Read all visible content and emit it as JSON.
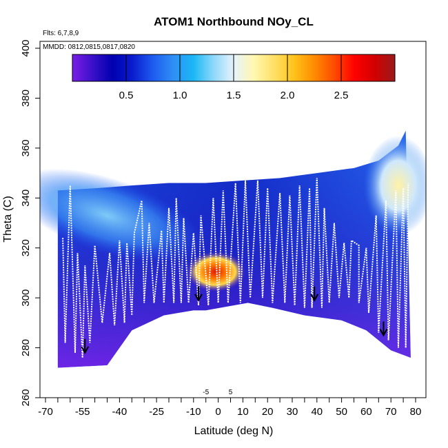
{
  "chart_data": {
    "type": "heatmap",
    "title": "ATOM1 Northbound NOy_CL",
    "flights_note": "Flts: 6,7,8,9",
    "dates_note": "MMDD: 0812,0815,0817,0820",
    "xlabel": "Latitude (deg N)",
    "ylabel": "Theta (C)",
    "xlim": [
      -70,
      80
    ],
    "ylim": [
      260,
      400
    ],
    "x_ticks": [
      "-70",
      "-55",
      "-40",
      "-25",
      "-10",
      "0",
      "10",
      "20",
      "30",
      "40",
      "50",
      "60",
      "70",
      "80"
    ],
    "x_tick_values": [
      -70,
      -55,
      -40,
      -25,
      -10,
      0,
      10,
      20,
      30,
      40,
      50,
      60,
      70,
      80
    ],
    "x_ticks_inner": [
      "-5",
      "5"
    ],
    "x_ticks_inner_values": [
      -5,
      5
    ],
    "y_ticks": [
      "260",
      "280",
      "300",
      "320",
      "340",
      "360",
      "380",
      "400"
    ],
    "y_tick_values": [
      260,
      280,
      300,
      320,
      340,
      360,
      380,
      400
    ],
    "colorbar": {
      "range": [
        0,
        3.0
      ],
      "ticks": [
        "0.5",
        "1.0",
        "1.5",
        "2.0",
        "2.5"
      ],
      "tick_values": [
        0.5,
        1.0,
        1.5,
        2.0,
        2.5
      ],
      "colors": [
        "#7a1ee6",
        "#3a10c8",
        "#0000b0",
        "#0a1ecf",
        "#1e5bf0",
        "#2f8ff5",
        "#1ab8f5",
        "#8fd8fa",
        "#e6f3fb",
        "#fff8b0",
        "#ffe066",
        "#ffc21a",
        "#ff8c00",
        "#ff4a00",
        "#ff0000",
        "#d10000",
        "#9a1b1b"
      ]
    },
    "surface_boundary": [
      [
        -65,
        272
      ],
      [
        -45,
        273
      ],
      [
        -35,
        287
      ],
      [
        -22,
        293
      ],
      [
        -10,
        295
      ],
      [
        -5,
        295
      ],
      [
        12,
        298
      ],
      [
        22,
        296
      ],
      [
        35,
        293
      ],
      [
        50,
        291
      ],
      [
        60,
        287
      ],
      [
        70,
        279
      ],
      [
        78,
        276
      ]
    ],
    "top_boundary": [
      [
        -65,
        343
      ],
      [
        -48,
        344
      ],
      [
        -35,
        345
      ],
      [
        -20,
        346
      ],
      [
        -5,
        346
      ],
      [
        10,
        347
      ],
      [
        25,
        348
      ],
      [
        40,
        350
      ],
      [
        55,
        352
      ],
      [
        65,
        355
      ],
      [
        73,
        361
      ],
      [
        76,
        367
      ]
    ],
    "tropopause_arrows": [
      [
        -54,
        278
      ],
      [
        -8,
        299
      ],
      [
        39,
        299
      ],
      [
        67,
        285
      ]
    ],
    "flight_track_peaks": [
      [
        -63,
        324
      ],
      [
        -60,
        345
      ],
      [
        -57,
        318
      ],
      [
        -54,
        313
      ],
      [
        -50,
        321
      ],
      [
        -44,
        318
      ],
      [
        -40,
        323
      ],
      [
        -37,
        322
      ],
      [
        -34,
        326
      ],
      [
        -31,
        339
      ],
      [
        -28,
        330
      ],
      [
        -23,
        327
      ],
      [
        -20,
        336
      ],
      [
        -17,
        340
      ],
      [
        -14,
        332
      ],
      [
        -10,
        326
      ],
      [
        -7,
        333
      ],
      [
        -2,
        340
      ],
      [
        2,
        343
      ],
      [
        7,
        346
      ],
      [
        11,
        347
      ],
      [
        16,
        347
      ],
      [
        20,
        344
      ],
      [
        25,
        342
      ],
      [
        29,
        341
      ],
      [
        33,
        345
      ],
      [
        37,
        344
      ],
      [
        40,
        348
      ],
      [
        43,
        336
      ],
      [
        47,
        330
      ],
      [
        51,
        322
      ],
      [
        54,
        323
      ],
      [
        57,
        321
      ],
      [
        60,
        320
      ],
      [
        64,
        333
      ],
      [
        68,
        339
      ],
      [
        72,
        343
      ],
      [
        75,
        344
      ],
      [
        77,
        346
      ]
    ],
    "flight_track_troughs": [
      [
        -62,
        282
      ],
      [
        -58,
        278
      ],
      [
        -55,
        276
      ],
      [
        -52,
        282
      ],
      [
        -47,
        290
      ],
      [
        -42,
        289
      ],
      [
        -38,
        290
      ],
      [
        -35,
        293
      ],
      [
        -30,
        298
      ],
      [
        -26,
        298
      ],
      [
        -22,
        298
      ],
      [
        -18,
        298
      ],
      [
        -15,
        298
      ],
      [
        -12,
        298
      ],
      [
        -8,
        297
      ],
      [
        -4,
        297
      ],
      [
        0,
        298
      ],
      [
        4,
        298
      ],
      [
        9,
        298
      ],
      [
        13,
        300
      ],
      [
        18,
        300
      ],
      [
        22,
        298
      ],
      [
        27,
        298
      ],
      [
        31,
        297
      ],
      [
        35,
        296
      ],
      [
        38,
        296
      ],
      [
        42,
        296
      ],
      [
        45,
        298
      ],
      [
        49,
        300
      ],
      [
        53,
        300
      ],
      [
        57,
        298
      ],
      [
        61,
        294
      ],
      [
        65,
        286
      ],
      [
        69,
        283
      ],
      [
        73,
        280
      ],
      [
        76,
        280
      ]
    ],
    "high_value_patch": {
      "lat_range": [
        -10,
        8
      ],
      "theta_range": [
        305,
        316
      ],
      "peak": 2.7
    }
  }
}
